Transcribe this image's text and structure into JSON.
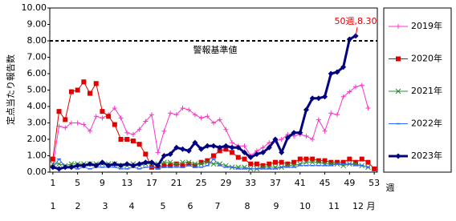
{
  "chart_data": {
    "type": "line",
    "y_label": "定点当たり報告数",
    "x_label": "週",
    "x": [
      1,
      2,
      3,
      4,
      5,
      6,
      7,
      8,
      9,
      10,
      11,
      12,
      13,
      14,
      15,
      16,
      17,
      18,
      19,
      20,
      21,
      22,
      23,
      24,
      25,
      26,
      27,
      28,
      29,
      30,
      31,
      32,
      33,
      34,
      35,
      36,
      37,
      38,
      39,
      40,
      41,
      42,
      43,
      44,
      45,
      46,
      47,
      48,
      49,
      50,
      51,
      52,
      53
    ],
    "xlim": [
      0.5,
      53.5
    ],
    "xticks": [
      1,
      5,
      9,
      13,
      17,
      21,
      25,
      29,
      33,
      37,
      41,
      45,
      49,
      53
    ],
    "ylim": [
      0,
      10
    ],
    "yticks": [
      {
        "value": 0,
        "label": "0.00"
      },
      {
        "value": 1,
        "label": "1.00"
      },
      {
        "value": 2,
        "label": "2.00"
      },
      {
        "value": 3,
        "label": "3.00"
      },
      {
        "value": 4,
        "label": "4.00"
      },
      {
        "value": 5,
        "label": "5.00"
      },
      {
        "value": 6,
        "label": "6.00"
      },
      {
        "value": 7,
        "label": "7.00"
      },
      {
        "value": 8,
        "label": "8.00"
      },
      {
        "value": 9,
        "label": "9.00"
      },
      {
        "value": 10,
        "label": "10.00"
      }
    ],
    "months": [
      "1",
      "2",
      "3",
      "4",
      "5",
      "6",
      "7",
      "8",
      "9",
      "10",
      "11",
      "12"
    ],
    "month_unit": "月",
    "threshold": {
      "value": 8,
      "label": "警報基準値"
    },
    "annotation": {
      "x": 50,
      "y": 8.3,
      "text": "50週,8.30"
    },
    "grid": false,
    "legend": "right",
    "series": [
      {
        "name": "2019年",
        "color": "#ff33cc",
        "marker": "plus",
        "width": 1,
        "values": [
          0.4,
          2.8,
          2.7,
          3.0,
          3.0,
          2.9,
          2.5,
          3.4,
          3.3,
          3.5,
          3.9,
          3.3,
          2.4,
          2.3,
          2.6,
          3.1,
          3.5,
          1.2,
          2.5,
          3.6,
          3.5,
          3.9,
          3.8,
          3.5,
          3.3,
          3.4,
          3.0,
          3.2,
          2.6,
          1.8,
          1.6,
          1.6,
          1.0,
          1.3,
          1.5,
          1.8,
          1.9,
          2.0,
          2.3,
          2.2,
          2.3,
          2.2,
          2.0,
          3.2,
          2.5,
          3.6,
          3.5,
          4.6,
          4.9,
          5.2,
          5.3,
          3.9,
          null
        ]
      },
      {
        "name": "2020年",
        "color": "#e00000",
        "marker": "square",
        "width": 1,
        "values": [
          0.8,
          3.7,
          3.2,
          4.9,
          5.0,
          5.5,
          4.8,
          5.4,
          3.7,
          3.4,
          2.9,
          2.0,
          2.0,
          1.9,
          1.7,
          1.1,
          0.3,
          0.3,
          0.4,
          0.4,
          0.5,
          0.4,
          0.5,
          0.4,
          0.6,
          0.7,
          1.0,
          1.3,
          1.4,
          1.2,
          0.9,
          0.8,
          0.5,
          0.5,
          0.4,
          0.5,
          0.6,
          0.6,
          0.5,
          0.6,
          0.8,
          0.8,
          0.8,
          0.7,
          0.7,
          0.6,
          0.6,
          0.6,
          0.8,
          0.6,
          0.8,
          0.6,
          0.2
        ]
      },
      {
        "name": "2021年",
        "color": "#2e8b2e",
        "marker": "cross",
        "width": 1,
        "values": [
          0.5,
          0.5,
          0.4,
          0.5,
          0.5,
          0.5,
          0.5,
          0.5,
          0.5,
          0.5,
          0.5,
          0.4,
          0.4,
          0.5,
          0.4,
          0.5,
          0.5,
          0.5,
          0.6,
          0.6,
          0.5,
          0.6,
          0.6,
          0.5,
          0.5,
          0.6,
          0.5,
          0.5,
          0.4,
          0.3,
          0.3,
          0.3,
          0.2,
          0.2,
          0.3,
          0.3,
          0.3,
          0.3,
          0.4,
          0.4,
          0.5,
          0.6,
          0.6,
          0.6,
          0.5,
          0.5,
          0.5,
          0.4,
          0.5,
          0.5,
          0.4,
          0.3,
          null
        ]
      },
      {
        "name": "2022年",
        "color": "#3366ff",
        "marker": "dash",
        "width": 1,
        "values": [
          0.3,
          0.8,
          0.3,
          0.3,
          0.2,
          0.3,
          0.2,
          0.3,
          0.3,
          0.3,
          0.3,
          0.2,
          0.2,
          0.3,
          0.2,
          0.3,
          0.3,
          0.2,
          0.3,
          0.3,
          0.3,
          0.3,
          0.4,
          0.3,
          0.3,
          0.4,
          0.8,
          0.4,
          0.3,
          0.3,
          0.2,
          0.2,
          0.2,
          0.2,
          0.2,
          0.2,
          0.2,
          0.3,
          0.3,
          0.3,
          0.4,
          0.4,
          0.4,
          0.4,
          0.4,
          0.4,
          0.5,
          0.5,
          0.5,
          0.4,
          0.4,
          0.3,
          null
        ]
      },
      {
        "name": "2023年",
        "color": "#000080",
        "marker": "diamond",
        "width": 3,
        "values": [
          0.3,
          0.2,
          0.3,
          0.3,
          0.4,
          0.4,
          0.5,
          0.4,
          0.6,
          0.4,
          0.5,
          0.4,
          0.5,
          0.4,
          0.5,
          0.6,
          0.6,
          0.4,
          1.0,
          1.1,
          1.5,
          1.4,
          1.3,
          1.8,
          1.4,
          1.6,
          1.6,
          1.5,
          1.6,
          1.5,
          1.5,
          1.2,
          0.9,
          1.1,
          1.2,
          1.5,
          2.0,
          1.2,
          2.1,
          2.4,
          2.4,
          3.8,
          4.5,
          4.5,
          4.6,
          6.0,
          6.1,
          6.4,
          8.1,
          8.3,
          null,
          null,
          null
        ]
      }
    ]
  }
}
